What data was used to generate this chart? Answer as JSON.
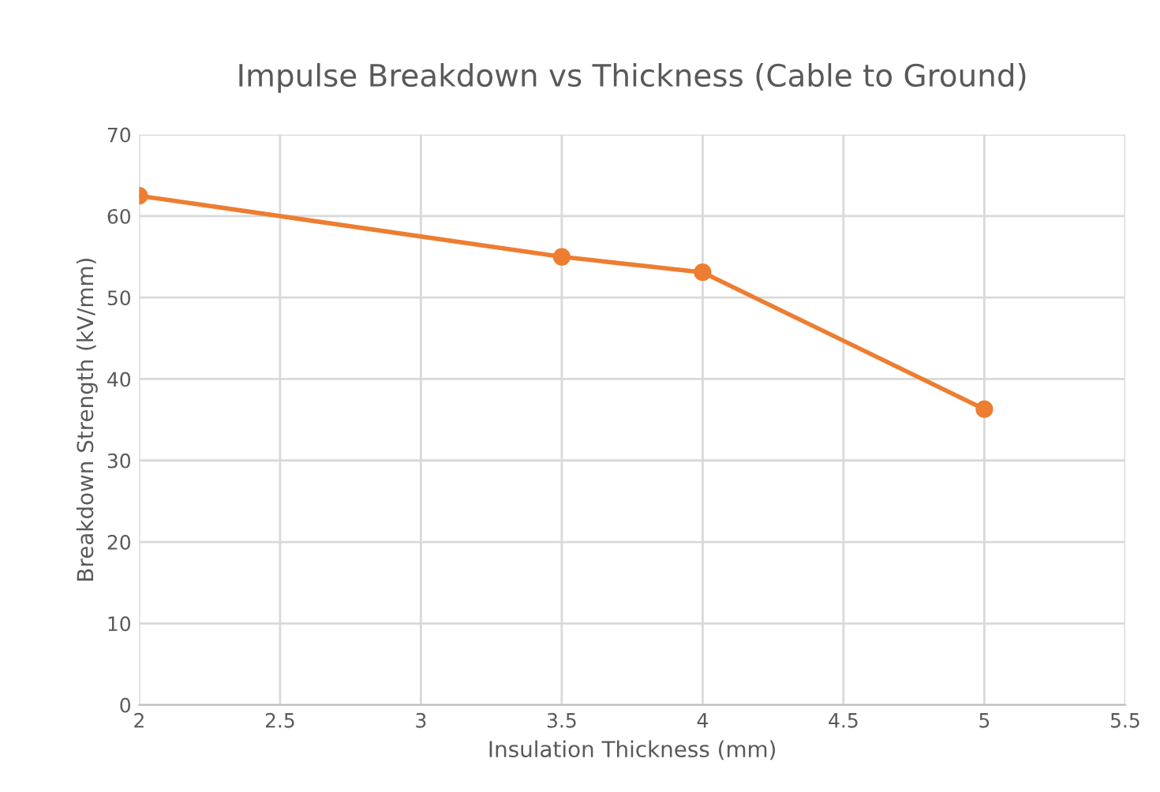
{
  "chart_data": {
    "type": "line",
    "title": "Impulse Breakdown vs Thickness (Cable to Ground)",
    "xlabel": "Insulation Thickness (mm)",
    "ylabel": "Breakdown Strength (kV/mm)",
    "x": [
      2,
      3.5,
      4,
      5
    ],
    "series": [
      {
        "color": "#ed7d31",
        "values": [
          62.5,
          55,
          53.1,
          36.3
        ]
      }
    ],
    "xlim": [
      2,
      5.5
    ],
    "xticks": [
      2,
      2.5,
      3,
      3.5,
      4,
      4.5,
      5,
      5.5
    ],
    "ylim": [
      0,
      70
    ],
    "yticks": [
      0,
      10,
      20,
      30,
      40,
      50,
      60,
      70
    ],
    "grid": true,
    "marker": "circle",
    "line_style": "solid"
  }
}
